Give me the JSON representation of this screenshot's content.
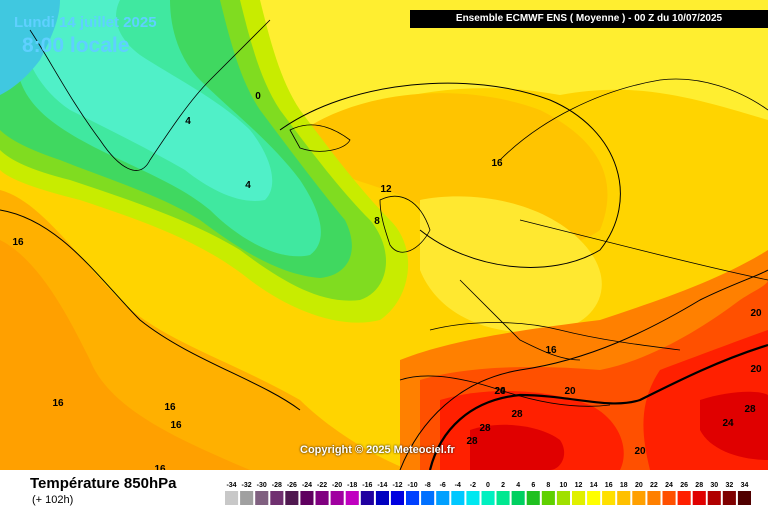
{
  "header": {
    "date": "Lundi 14 juillet 2025",
    "time": "8:00 locale",
    "model": "Ensemble ECMWF ENS  ( Moyenne )  -  00 Z du 10/07/2025"
  },
  "copyright": "Copyright © 2025 Meteociel.fr",
  "footer": {
    "title": "Température 850hPa",
    "subtitle": "(+ 102h)"
  },
  "scale": {
    "values": [
      "-34",
      "-32",
      "-30",
      "-28",
      "-26",
      "-24",
      "-22",
      "-20",
      "-18",
      "-16",
      "-14",
      "-12",
      "-10",
      "-8",
      "-6",
      "-4",
      "-2",
      "0",
      "2",
      "4",
      "6",
      "8",
      "10",
      "12",
      "14",
      "16",
      "18",
      "20",
      "22",
      "24",
      "26",
      "28",
      "30",
      "32",
      "34"
    ],
    "colors": [
      "#c8c8c8",
      "#a0a0a0",
      "#806080",
      "#703070",
      "#501850",
      "#600060",
      "#800080",
      "#a000a0",
      "#c000c0",
      "#2000a0",
      "#0000c0",
      "#0000e0",
      "#0040ff",
      "#0070ff",
      "#00a0ff",
      "#00c8ff",
      "#00e8f0",
      "#00f0c0",
      "#00e890",
      "#00d060",
      "#20c020",
      "#60d000",
      "#a0e000",
      "#e0f000",
      "#ffff00",
      "#ffe000",
      "#ffc000",
      "#ffa000",
      "#ff8000",
      "#ff5000",
      "#ff2000",
      "#e00000",
      "#b00000",
      "#800000",
      "#500000"
    ]
  },
  "contour_labels": [
    "0",
    "4",
    "4",
    "8",
    "12",
    "16",
    "16",
    "16",
    "16",
    "16",
    "16",
    "16",
    "20",
    "20",
    "20",
    "24",
    "24",
    "28",
    "28",
    "28",
    "28",
    "20"
  ]
}
